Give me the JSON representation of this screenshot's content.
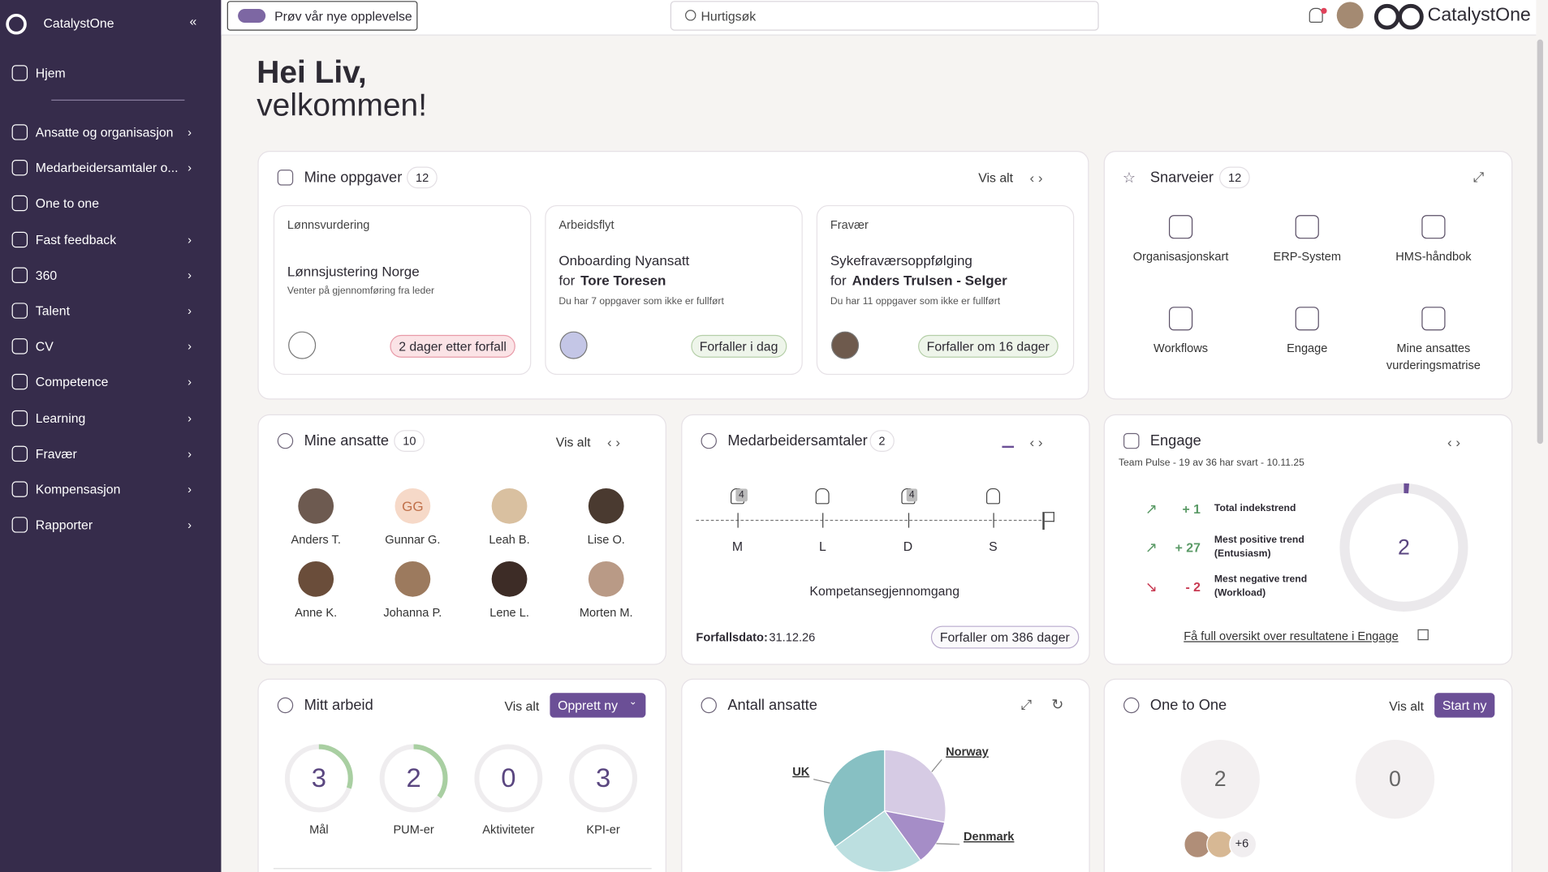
{
  "sidebar": {
    "brand": "CatalystOne",
    "items": [
      "Hjem",
      "Ansatte og organisasjon",
      "Medarbeidersamtaler o...",
      "One to one",
      "Fast feedback",
      "360",
      "Talent",
      "CV",
      "Competence",
      "Learning",
      "Fravær",
      "Kompensasjon",
      "Rapporter"
    ]
  },
  "topbar": {
    "toggle": "Prøv vår nye opplevelse",
    "search": "Hurtigsøk",
    "brand": "CatalystOne"
  },
  "greeting": {
    "line1": "Hei Liv,",
    "line2": "velkommen!"
  },
  "tasks": {
    "title": "Mine oppgaver",
    "count": 12,
    "view_all": "Vis alt",
    "cards": [
      {
        "category": "Lønnsvurdering",
        "title": "Lønnsjustering Norge",
        "subtitle": "Venter på gjennomføring fra leder",
        "badge": "2 dager etter forfall"
      },
      {
        "category": "Arbeidsflyt",
        "title": "Onboarding Nyansatt",
        "for_prefix": "for",
        "for_name": "Tore Toresen",
        "subtitle": "Du har 7 oppgaver som ikke er fullført",
        "badge": "Forfaller i dag"
      },
      {
        "category": "Fravær",
        "title": "Sykefraværsoppfølging",
        "for_prefix": "for",
        "for_name": "Anders Trulsen - Selger",
        "subtitle": "Du har 11 oppgaver som ikke er fullført",
        "badge": "Forfaller om 16 dager"
      }
    ]
  },
  "shortcuts": {
    "title": "Snarveier",
    "count": 12,
    "items": [
      "Organisasjonskart",
      "ERP-System",
      "HMS-håndbok",
      "Workflows",
      "Engage",
      "Mine ansattes vurderingsmatrise"
    ]
  },
  "employees": {
    "title": "Mine ansatte",
    "count": 10,
    "view_all": "Vis alt",
    "people": [
      {
        "name": "Anders T."
      },
      {
        "name": "Gunnar G.",
        "initials": "GG"
      },
      {
        "name": "Leah B."
      },
      {
        "name": "Lise O."
      },
      {
        "name": "Anne K."
      },
      {
        "name": "Johanna P."
      },
      {
        "name": "Lene L."
      },
      {
        "name": "Morten M."
      }
    ]
  },
  "reviews": {
    "title": "Medarbeidersamtaler",
    "count": 2,
    "timeline": [
      {
        "label": "M",
        "badge": 4
      },
      {
        "label": "L"
      },
      {
        "label": "D",
        "badge": 4
      },
      {
        "label": "S"
      }
    ],
    "caption": "Kompetansegjennomgang",
    "due_label": "Forfallsdato:",
    "due_date": "31.12.26",
    "badge": "Forfaller om 386 dager"
  },
  "engage": {
    "title": "Engage",
    "subtitle": "Team Pulse - 19 av 36 har svart - 10.11.25",
    "trends": [
      {
        "value": "+ 1",
        "label": "Total indekstrend"
      },
      {
        "value": "+ 27",
        "label": "Mest positive trend (Entusiasm)"
      },
      {
        "value": "- 2",
        "label": "Mest negative trend (Workload)"
      }
    ],
    "score": 2,
    "link": "Få full oversikt over resultatene i Engage"
  },
  "work": {
    "title": "Mitt arbeid",
    "view_all": "Vis alt",
    "create": "Opprett ny",
    "stats": [
      {
        "value": 3,
        "label": "Mål"
      },
      {
        "value": 2,
        "label": "PUM-er"
      },
      {
        "value": 0,
        "label": "Aktiviteter"
      },
      {
        "value": 3,
        "label": "KPI-er"
      }
    ]
  },
  "headcount": {
    "title": "Antall ansatte"
  },
  "chart_data": {
    "type": "pie",
    "categories": [
      "Norway",
      "Denmark",
      null,
      "UK"
    ],
    "values": [
      28,
      12,
      25,
      35
    ],
    "colors": [
      "#d6cbe4",
      "#a58dc7",
      "#bcdfe0",
      "#87c0c3"
    ]
  },
  "one_to_one": {
    "title": "One to One",
    "view_all": "Vis alt",
    "start": "Start ny",
    "stats": [
      2,
      0
    ],
    "more": "+6"
  }
}
